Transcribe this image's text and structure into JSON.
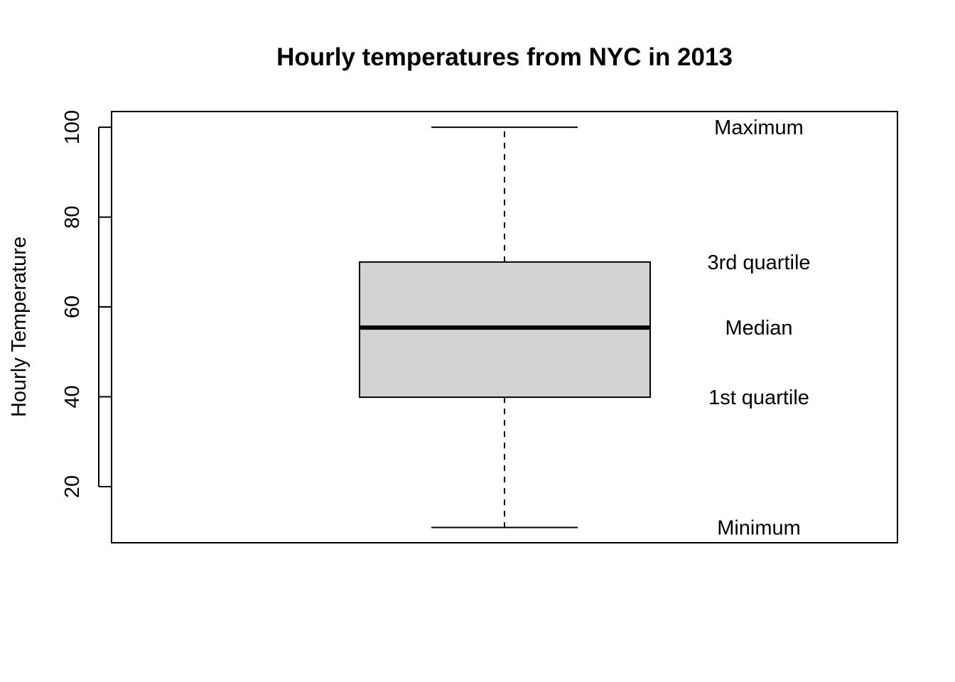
{
  "chart_data": {
    "type": "boxplot",
    "title": "Hourly temperatures from NYC in 2013",
    "xlabel": "",
    "ylabel": "Hourly Temperature",
    "ylim": [
      7.5,
      103.5
    ],
    "yticks": [
      20,
      40,
      60,
      80,
      100
    ],
    "grid": false,
    "box": {
      "min": 10.9,
      "q1": 39.9,
      "median": 55.4,
      "q3": 70.0,
      "max": 100.0
    },
    "annotations": [
      {
        "label": "Maximum",
        "value": 100.0
      },
      {
        "label": "3rd quartile",
        "value": 70.0
      },
      {
        "label": "Median",
        "value": 55.4
      },
      {
        "label": "1st quartile",
        "value": 39.9
      },
      {
        "label": "Minimum",
        "value": 10.9
      }
    ],
    "colors": {
      "box_fill": "#d3d3d3",
      "stroke": "#000000"
    }
  }
}
